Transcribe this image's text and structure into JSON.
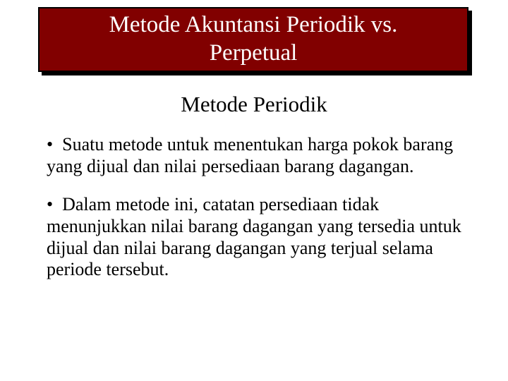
{
  "colors": {
    "banner_bg": "#810000",
    "banner_border": "#000000",
    "banner_text": "#ffffff",
    "page_bg": "#ffffff",
    "body_text": "#000000",
    "shadow": "#000000"
  },
  "typography": {
    "title_fontsize": 33,
    "subheading_fontsize": 31,
    "body_fontsize": 26,
    "font_family": "Times New Roman"
  },
  "title": {
    "line1": "Metode Akuntansi Periodik vs.",
    "line2": "Perpetual"
  },
  "subheading": "Metode Periodik",
  "bullets": [
    "Suatu metode untuk menentukan harga pokok barang yang dijual dan nilai persediaan barang dagangan.",
    "Dalam metode ini, catatan persediaan tidak menunjukkan nilai barang dagangan yang tersedia untuk dijual dan nilai barang dagangan yang terjual selama periode tersebut."
  ]
}
